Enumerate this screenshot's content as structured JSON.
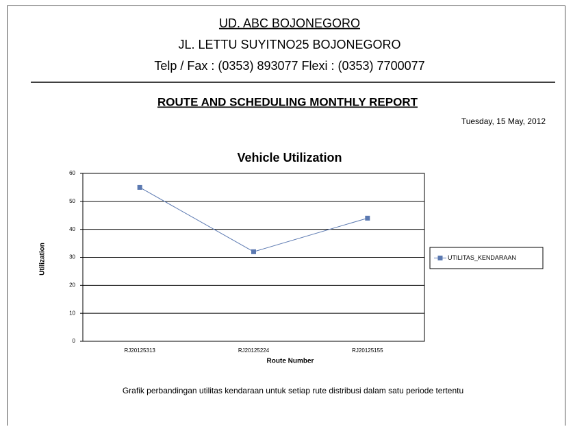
{
  "header": {
    "company": "UD. ABC BOJONEGORO",
    "address": "JL. LETTU SUYITNO25 BOJONEGORO",
    "contact": "Telp / Fax : (0353) 893077 Flexi : (0353) 7700077"
  },
  "report": {
    "title": "ROUTE AND SCHEDULING MONTHLY REPORT",
    "date": "Tuesday, 15 May, 2012"
  },
  "chart_data": {
    "type": "line",
    "title": "Vehicle Utilization",
    "x_label": "Route Number",
    "y_label": "Utilization",
    "categories": [
      "RJ20125313",
      "RJ20125224",
      "RJ20125155"
    ],
    "series": [
      {
        "name": "UTILITAS_KENDARAAN",
        "color": "#5b79b1",
        "values": [
          55,
          32,
          44
        ]
      }
    ],
    "ylim": [
      0,
      60
    ],
    "yticks": [
      0,
      10,
      20,
      30,
      40,
      50,
      60
    ],
    "grid": true,
    "legend": "right"
  },
  "caption": "Grafik perbandingan utilitas kendaraan untuk setiap rute distribusi dalam satu periode tertentu"
}
